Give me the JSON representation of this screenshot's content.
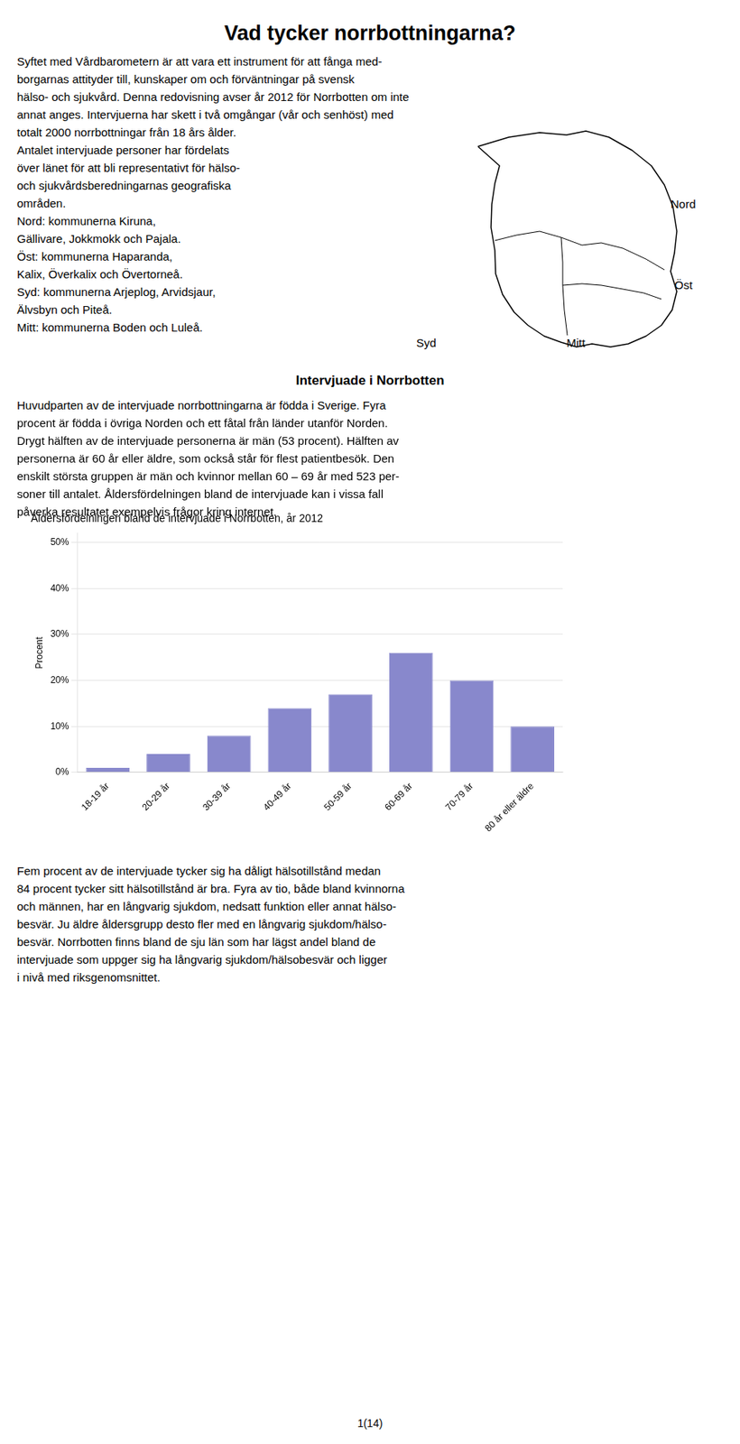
{
  "title": "Vad tycker norrbottningarna?",
  "intro": [
    "Syftet med Vårdbarometern är att vara ett instrument för att fånga med-",
    "borgarnas attityder till, kunskaper om och förväntningar på svensk",
    "hälso- och sjukvård. Denna redovisning avser år 2012 för Norrbotten om inte",
    "annat anges. Intervjuerna har skett i två omgångar (vår och senhöst) med",
    "totalt 2000 norrbottningar från 18 års ålder."
  ],
  "map_text": [
    "Antalet intervjuade personer har fördelats",
    "över länet för att bli representativt för hälso-",
    "och sjukvårdsberedningarnas geografiska",
    "områden.",
    "Nord: kommunerna Kiruna,",
    "Gällivare, Jokkmokk och Pajala.",
    "Öst: kommunerna Haparanda,",
    "Kalix, Överkalix och Övertorneå.",
    "Syd: kommunerna Arjeplog, Arvidsjaur,",
    "Älvsbyn och Piteå.",
    "Mitt:  kommunerna Boden och Luleå."
  ],
  "map_labels": [
    "Nord",
    "Öst",
    "Syd",
    "Mitt"
  ],
  "section_title": "Intervjuade i Norrbotten",
  "section_text": [
    "Huvudparten av de intervjuade norrbottningarna är födda i Sverige. Fyra",
    "procent är födda i övriga Norden och ett fåtal från länder utanför Norden.",
    "Drygt hälften av de intervjuade personerna är män (53 procent). Hälften av",
    "personerna är 60 år eller äldre, som också står för flest patientbesök. Den",
    "enskilt största gruppen är män och kvinnor mellan 60 – 69 år med 523 per-",
    "soner till antalet. Åldersfördelningen bland de intervjuade kan i vissa fall",
    "påverka resultatet exempelvis frågor kring internet."
  ],
  "footer": [
    "Fem procent av de intervjuade tycker sig ha dåligt hälsotillstånd medan",
    "84 procent tycker sitt hälsotillstånd är bra.  Fyra av tio, både bland kvinnorna",
    "och männen, har en långvarig sjukdom, nedsatt funktion eller annat hälso-",
    "besvär. Ju äldre åldersgrupp desto fler med en långvarig sjukdom/hälso-",
    "besvär. Norrbotten finns bland de sju län som har lägst andel bland de",
    "intervjuade som uppger sig ha långvarig sjukdom/hälsobesvär och ligger",
    "i nivå med riksgenomsnittet."
  ],
  "page_number": "1(14)",
  "chart_data": {
    "type": "bar",
    "title": "Åldersfördelningen bland de intervjuade i Norrbotten, år 2012",
    "ylabel": "Procent",
    "categories": [
      "18-19 år",
      "20-29 år",
      "30-39 år",
      "40-49 år",
      "50-59 år",
      "60-69 år",
      "70-79 år",
      "80 år eller äldre"
    ],
    "values": [
      1,
      4,
      8,
      14,
      17,
      26,
      20,
      10
    ],
    "color": "#8888cc",
    "ylim": [
      0,
      52
    ],
    "yticks": [
      {
        "value": 0,
        "label": "0%"
      },
      {
        "value": 10,
        "label": "10%"
      },
      {
        "value": 20,
        "label": "20%"
      },
      {
        "value": 30,
        "label": "30%"
      },
      {
        "value": 40,
        "label": "40%"
      },
      {
        "value": 50,
        "label": "50%"
      }
    ],
    "grid": true
  }
}
